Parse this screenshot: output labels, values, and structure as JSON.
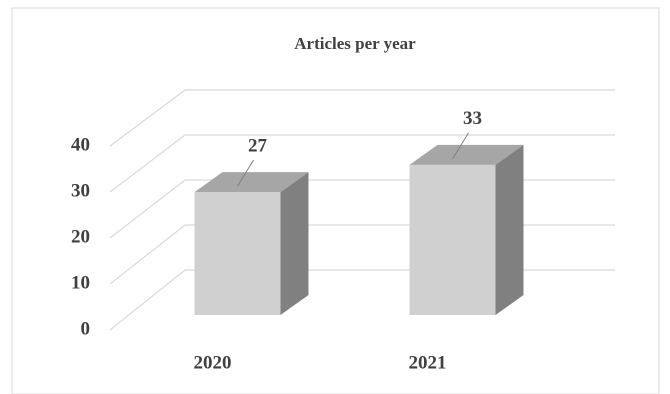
{
  "chart_data": {
    "type": "bar3d",
    "title": "Articles per year",
    "categories": [
      "2020",
      "2021"
    ],
    "values": [
      27,
      33
    ],
    "color": "#d0d0d0",
    "top_color": "#a6a6a6",
    "side_color": "#808080",
    "ylim": [
      0,
      40
    ],
    "yticks": [
      0,
      10,
      20,
      30,
      40
    ],
    "grid": true
  }
}
